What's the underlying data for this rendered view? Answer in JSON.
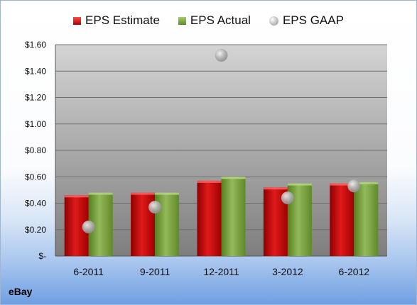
{
  "company": "eBay",
  "chart_data": {
    "type": "bar",
    "categories": [
      "6-2011",
      "9-2011",
      "12-2011",
      "3-2012",
      "6-2012"
    ],
    "series": [
      {
        "name": "EPS Estimate",
        "type": "bar",
        "color": "#cc1111",
        "values": [
          0.46,
          0.48,
          0.57,
          0.52,
          0.55
        ]
      },
      {
        "name": "EPS Actual",
        "type": "bar",
        "color": "#7fa646",
        "values": [
          0.48,
          0.48,
          0.6,
          0.55,
          0.56
        ]
      },
      {
        "name": "EPS GAAP",
        "type": "scatter",
        "color": "#a6a6a6",
        "values": [
          0.22,
          0.37,
          1.52,
          0.44,
          0.53
        ]
      }
    ],
    "ylim": [
      0,
      1.6
    ],
    "yticks": [
      0,
      0.2,
      0.4,
      0.6,
      0.8,
      1.0,
      1.2,
      1.4,
      1.6
    ],
    "ytick_labels": [
      "$-",
      "$0.20",
      "$0.40",
      "$0.60",
      "$0.80",
      "$1.00",
      "$1.20",
      "$1.40",
      "$1.60"
    ],
    "grid": true,
    "legend": "top"
  }
}
